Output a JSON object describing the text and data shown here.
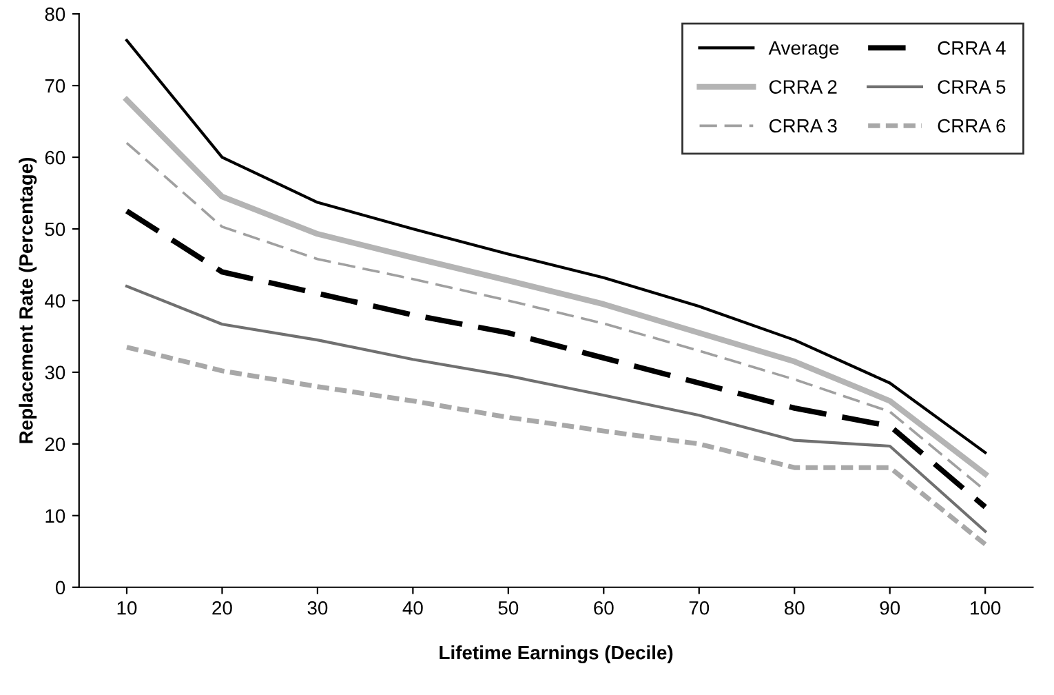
{
  "chart_data": {
    "type": "line",
    "xlabel": "Lifetime Earnings (Decile)",
    "ylabel": "Replacement Rate (Percentage)",
    "categories": [
      "10",
      "20",
      "30",
      "40",
      "50",
      "60",
      "70",
      "80",
      "90",
      "100"
    ],
    "ylim": [
      0,
      80
    ],
    "yticks": [
      0,
      10,
      20,
      30,
      40,
      50,
      60,
      70,
      80
    ],
    "grid": false,
    "legend": "top right",
    "marker": "none",
    "series": [
      {
        "name": "Average",
        "color": "#000000",
        "line_style": "solid",
        "values": [
          76.3,
          60,
          53.7,
          50,
          46.5,
          43.2,
          39.2,
          34.5,
          28.5,
          18.8
        ]
      },
      {
        "name": "CRRA 2",
        "color": "#b4b4b4",
        "line_style": "solid",
        "values": [
          68,
          54.5,
          49.3,
          46,
          42.8,
          39.5,
          35.5,
          31.5,
          26,
          15.8
        ]
      },
      {
        "name": "CRRA 3",
        "color": "#a0a0a0",
        "line_style": "dashed",
        "values": [
          62,
          50.3,
          45.8,
          43,
          40,
          36.8,
          33,
          29,
          24.5,
          13.5
        ]
      },
      {
        "name": "CRRA 4",
        "color": "#000000",
        "line_style": "dashed",
        "values": [
          52.5,
          44,
          41,
          38,
          35.5,
          32,
          28.5,
          25,
          22.5,
          11.2
        ]
      },
      {
        "name": "CRRA 5",
        "color": "#707070",
        "line_style": "solid",
        "values": [
          42,
          36.7,
          34.5,
          31.8,
          29.5,
          26.8,
          24,
          20.5,
          19.7,
          7.8
        ]
      },
      {
        "name": "CRRA 6",
        "color": "#a8a8a8",
        "line_style": "dotted",
        "values": [
          33.5,
          30.2,
          28,
          26,
          23.7,
          21.8,
          20,
          16.7,
          16.7,
          6
        ]
      }
    ]
  }
}
